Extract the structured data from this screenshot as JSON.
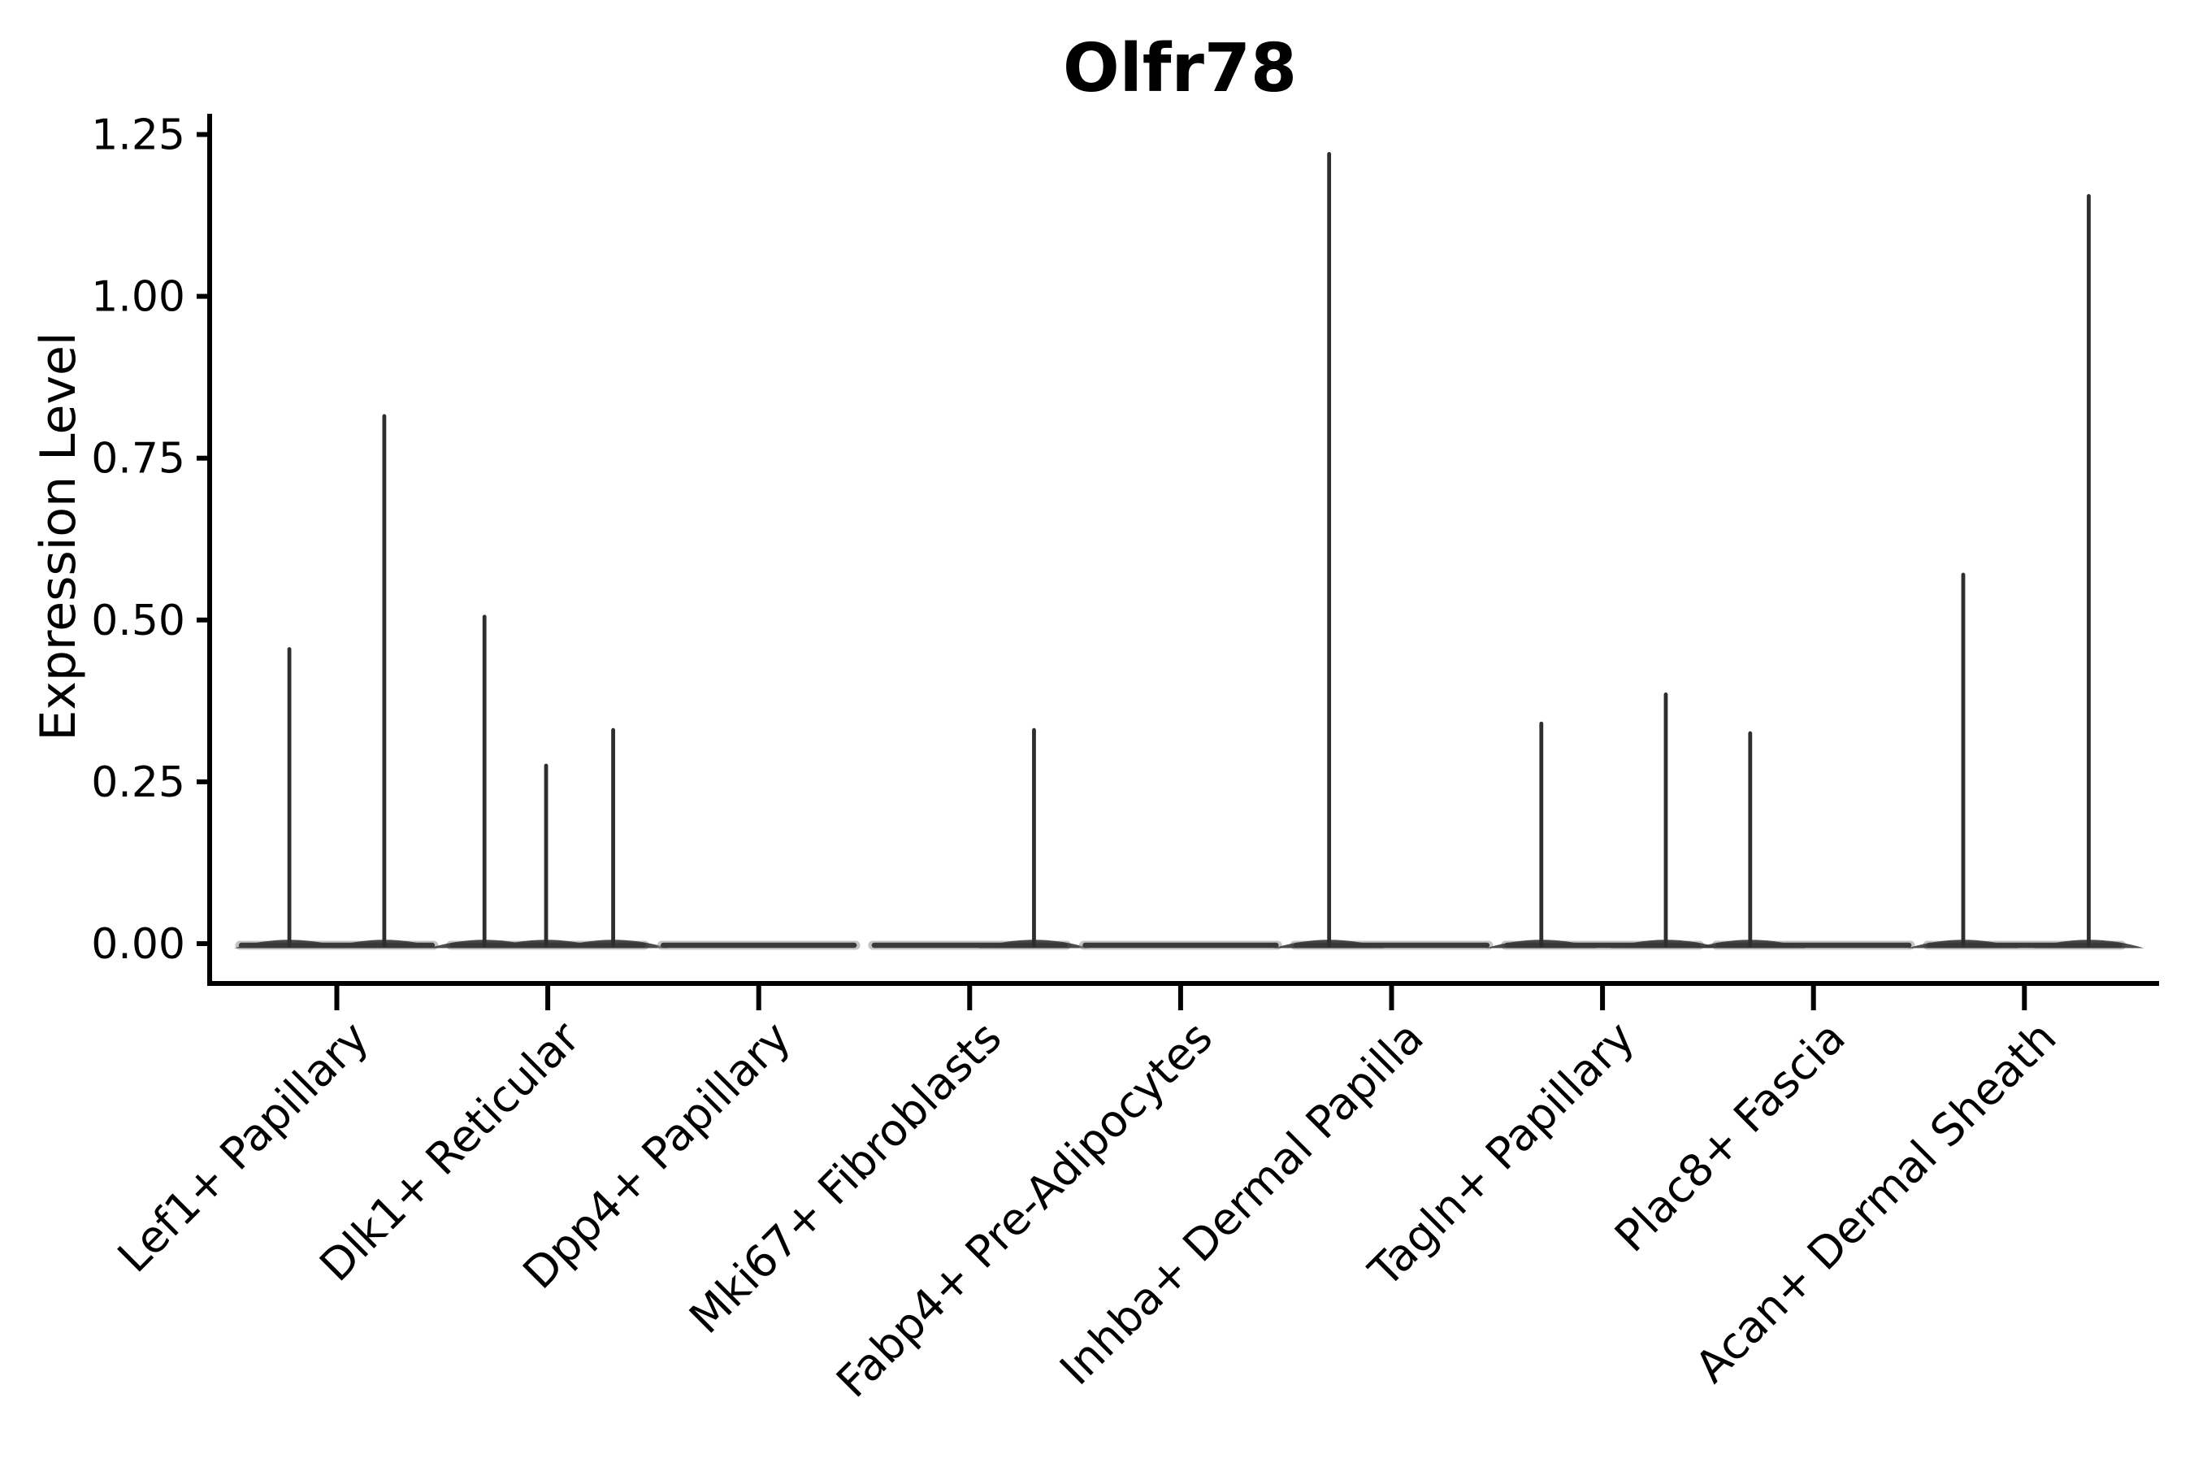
{
  "chart_data": {
    "type": "violin",
    "title": "Olfr78",
    "xlabel": "",
    "ylabel": "Expression Level",
    "ylim": [
      0,
      1.28
    ],
    "grid": false,
    "legend": "none",
    "ytick_values": [
      0,
      0.25,
      0.5,
      0.75,
      1.0,
      1.25
    ],
    "ytick_labels": [
      "0.00",
      "0.25",
      "0.50",
      "0.75",
      "1.00",
      "1.25"
    ],
    "categories": [
      "Lef1+ Papillary",
      "Dlk1+ Reticular",
      "Dpp4+ Papillary",
      "Mki67+ Fibroblasts",
      "Fabp4+ Pre-Adipocytes",
      "Inhba+ Dermal Papilla",
      "Tagln+ Papillary",
      "Plac8+ Fascia",
      "Acan+ Dermal Sheath"
    ],
    "series": [
      {
        "category": "Lef1+ Papillary",
        "body_halfwidth": 0.46,
        "spikes": [
          {
            "pos": -0.225,
            "value": 0.455
          },
          {
            "pos": 0.225,
            "value": 0.815
          }
        ]
      },
      {
        "category": "Dlk1+ Reticular",
        "body_halfwidth": 0.46,
        "spikes": [
          {
            "pos": -0.3,
            "value": 0.505
          },
          {
            "pos": -0.008,
            "value": 0.275
          },
          {
            "pos": 0.31,
            "value": 0.33
          }
        ]
      },
      {
        "category": "Dpp4+ Papillary",
        "body_halfwidth": 0.46,
        "spikes": []
      },
      {
        "category": "Mki67+ Fibroblasts",
        "body_halfwidth": 0.46,
        "spikes": [
          {
            "pos": 0.305,
            "value": 0.33
          }
        ]
      },
      {
        "category": "Fabp4+ Pre-Adipocytes",
        "body_halfwidth": 0.46,
        "spikes": []
      },
      {
        "category": "Inhba+ Dermal Papilla",
        "body_halfwidth": 0.46,
        "spikes": [
          {
            "pos": -0.296,
            "value": 1.22
          }
        ]
      },
      {
        "category": "Tagln+ Papillary",
        "body_halfwidth": 0.46,
        "spikes": [
          {
            "pos": -0.29,
            "value": 0.34
          },
          {
            "pos": 0.3,
            "value": 0.385
          }
        ]
      },
      {
        "category": "Plac8+ Fascia",
        "body_halfwidth": 0.46,
        "spikes": [
          {
            "pos": -0.3,
            "value": 0.325
          }
        ]
      },
      {
        "category": "Acan+ Dermal Sheath",
        "body_halfwidth": 0.46,
        "spikes": [
          {
            "pos": -0.29,
            "value": 0.57
          },
          {
            "pos": 0.305,
            "value": 1.155
          }
        ]
      }
    ],
    "style": {
      "spike_color": "#2e2e2e",
      "body_color": "#3a3a3a",
      "body_halo_color": "#8a8a8a",
      "axis_color": "#000000",
      "text_color": "#000000",
      "background": "#ffffff"
    }
  }
}
